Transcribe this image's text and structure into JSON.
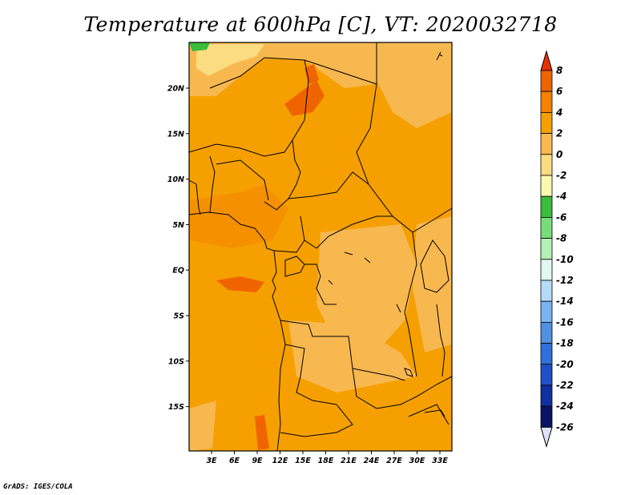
{
  "title": "Temperature at 600hPa [C], VT: 2020032718",
  "credit": "GrADS: IGES/COLA",
  "map": {
    "lon_labels": [
      "3E",
      "6E",
      "9E",
      "12E",
      "15E",
      "18E",
      "21E",
      "24E",
      "27E",
      "30E",
      "33E"
    ],
    "lat_labels": [
      "20N",
      "15N",
      "10N",
      "5N",
      "EQ",
      "5S",
      "10S",
      "15S"
    ],
    "dominant_color": "#f5a000"
  },
  "colorbar": {
    "labels": [
      "8",
      "6",
      "4",
      "2",
      "0",
      "-2",
      "-4",
      "-6",
      "-8",
      "-10",
      "-12",
      "-14",
      "-16",
      "-18",
      "-20",
      "-22",
      "-24",
      "-26"
    ],
    "colors": [
      "#e63200",
      "#f06400",
      "#f58200",
      "#f5a000",
      "#f8b850",
      "#fcdc80",
      "#fcf8b0",
      "#3cbc3c",
      "#78dc78",
      "#b4f0b4",
      "#e0f8f0",
      "#b4dcf8",
      "#78b4f0",
      "#5090e0",
      "#3070d8",
      "#1e50c8",
      "#1030a0",
      "#0a1464",
      "#e0e0f8"
    ]
  }
}
